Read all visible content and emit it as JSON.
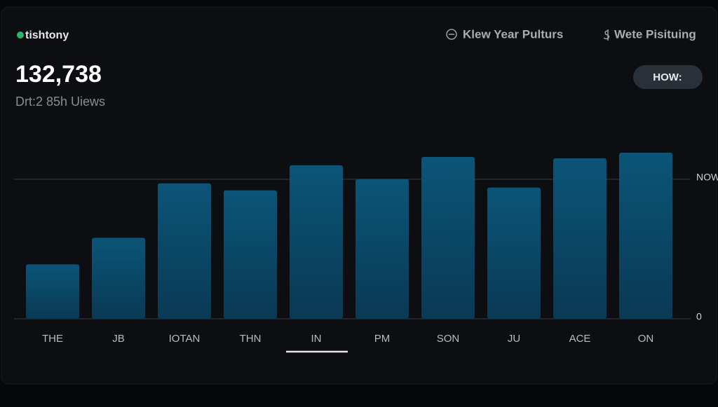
{
  "header": {
    "brand": "tishtony",
    "total": "132,738",
    "subtitle": "Drt:2 85h Uiews",
    "menu": [
      "Klew Year Pulturs",
      "Wete Pisituing"
    ],
    "button": "HOW:"
  },
  "chart_data": {
    "type": "bar",
    "categories": [
      "THE",
      "JB",
      "IOTAN",
      "THN",
      "IN",
      "PM",
      "SON",
      "JU",
      "ACE",
      "ON"
    ],
    "values": [
      39,
      58,
      97,
      92,
      110,
      100,
      116,
      94,
      115,
      119
    ],
    "color": "#0a4f72",
    "ylim": [
      0,
      120
    ],
    "yticks": [
      0,
      {
        "value": 100,
        "label": "NOW"
      }
    ],
    "grid": true
  }
}
